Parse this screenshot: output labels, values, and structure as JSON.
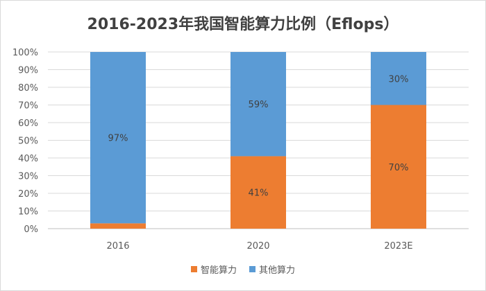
{
  "chart_data": {
    "type": "bar",
    "stacked": true,
    "title": "2016-2023年我国智能算力比例（Eflops）",
    "categories": [
      "2016",
      "2020",
      "2023E"
    ],
    "ylim": [
      0,
      100
    ],
    "yticks": [
      "0%",
      "10%",
      "20%",
      "30%",
      "40%",
      "50%",
      "60%",
      "70%",
      "80%",
      "90%",
      "100%"
    ],
    "grid": true,
    "legend_position": "bottom",
    "series": [
      {
        "name": "智能算力",
        "color": "#ED7D31",
        "values": [
          3,
          41,
          70
        ],
        "labels": [
          "3%",
          "41%",
          "70%"
        ]
      },
      {
        "name": "其他算力",
        "color": "#5B9BD5",
        "values": [
          97,
          59,
          30
        ],
        "labels": [
          "97%",
          "59%",
          "30%"
        ]
      }
    ]
  }
}
